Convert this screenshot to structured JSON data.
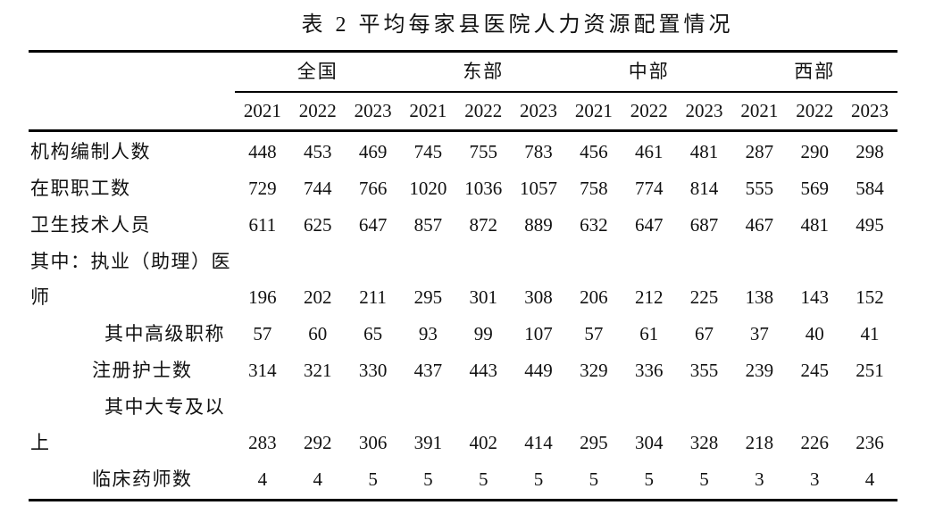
{
  "title": "表 2 平均每家县医院人力资源配置情况",
  "table": {
    "region_groups": [
      "全国",
      "东部",
      "中部",
      "西部"
    ],
    "year_columns": [
      "2021",
      "2022",
      "2023",
      "2021",
      "2022",
      "2023",
      "2021",
      "2022",
      "2023",
      "2021",
      "2022",
      "2023"
    ],
    "rows": [
      {
        "label_lines": [
          "机构编制人数"
        ],
        "indent_level": 0,
        "values": [
          448,
          453,
          469,
          745,
          755,
          783,
          456,
          461,
          481,
          287,
          290,
          298
        ]
      },
      {
        "label_lines": [
          "在职职工数"
        ],
        "indent_level": 0,
        "values": [
          729,
          744,
          766,
          1020,
          1036,
          1057,
          758,
          774,
          814,
          555,
          569,
          584
        ]
      },
      {
        "label_lines": [
          "卫生技术人员"
        ],
        "indent_level": 0,
        "values": [
          611,
          625,
          647,
          857,
          872,
          889,
          632,
          647,
          687,
          467,
          481,
          495
        ]
      },
      {
        "label_lines": [
          "其中：执业（助理）医",
          "师"
        ],
        "indent_level": 0,
        "values": [
          196,
          202,
          211,
          295,
          301,
          308,
          206,
          212,
          225,
          138,
          143,
          152
        ]
      },
      {
        "label_lines": [
          "其中高级职称"
        ],
        "indent_level": 2,
        "values": [
          57,
          60,
          65,
          93,
          99,
          107,
          57,
          61,
          67,
          37,
          40,
          41
        ]
      },
      {
        "label_lines": [
          "注册护士数"
        ],
        "indent_level": 1,
        "values": [
          314,
          321,
          330,
          437,
          443,
          449,
          329,
          336,
          355,
          239,
          245,
          251
        ]
      },
      {
        "label_lines": [
          "其中大专及以",
          "上"
        ],
        "indent_level": 2,
        "values": [
          283,
          292,
          306,
          391,
          402,
          414,
          295,
          304,
          328,
          218,
          226,
          236
        ]
      },
      {
        "label_lines": [
          "临床药师数"
        ],
        "indent_level": 1,
        "values": [
          4,
          4,
          5,
          5,
          5,
          5,
          5,
          5,
          5,
          3,
          3,
          4
        ]
      }
    ]
  }
}
